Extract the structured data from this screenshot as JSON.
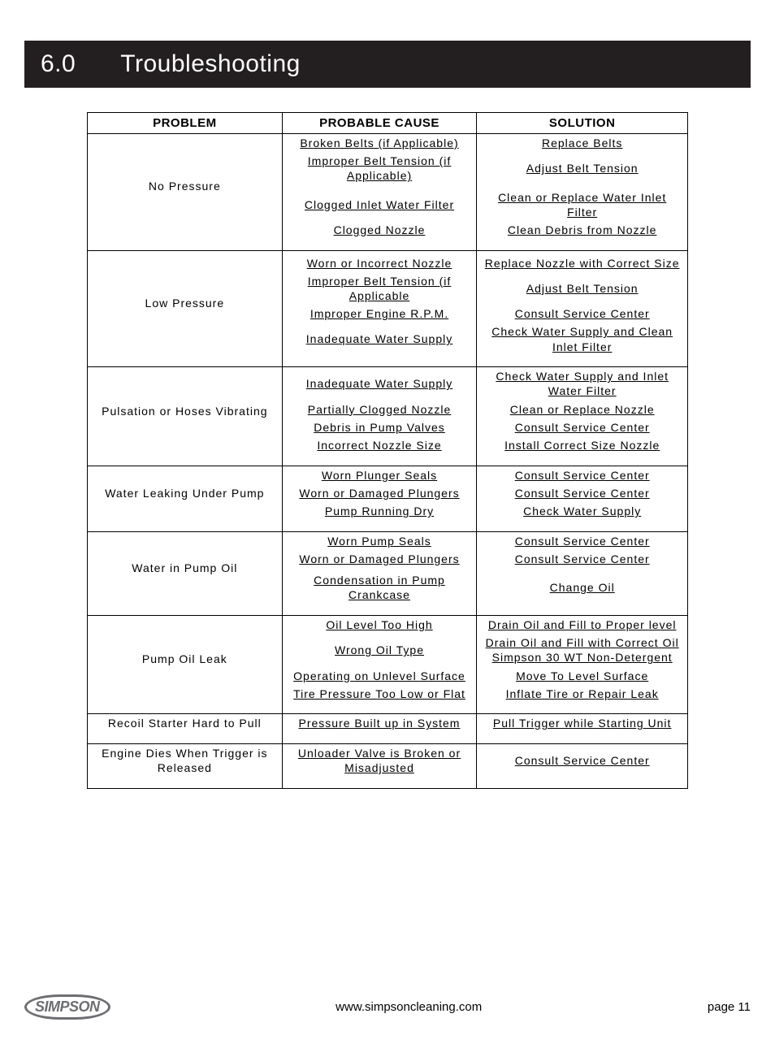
{
  "heading": {
    "number": "6.0",
    "title": "Troubleshooting"
  },
  "table": {
    "headers": {
      "problem": "PROBLEM",
      "cause": "PROBABLE CAUSE",
      "solution": "SOLUTION"
    },
    "groups": [
      {
        "problem": "No Pressure",
        "rows": [
          {
            "cause": "Broken Belts (if Applicable)",
            "solution": "Replace Belts"
          },
          {
            "cause": "Improper Belt Tension (if Applicable)",
            "solution": "Adjust Belt Tension"
          },
          {
            "cause": "",
            "solution": ""
          },
          {
            "cause": "Clogged Inlet Water Filter",
            "solution": "Clean or Replace Water Inlet Filter"
          },
          {
            "cause": "Clogged Nozzle",
            "solution": "Clean Debris from Nozzle"
          }
        ]
      },
      {
        "problem": "Low Pressure",
        "rows": [
          {
            "cause": "",
            "solution": ""
          },
          {
            "cause": "Worn or Incorrect Nozzle",
            "solution": "Replace Nozzle with Correct Size"
          },
          {
            "cause": "Improper Belt Tension (if Applicable",
            "solution": "Adjust Belt Tension"
          },
          {
            "cause": "Improper Engine R.P.M.",
            "solution": "Consult Service Center"
          },
          {
            "cause": "Inadequate Water Supply",
            "solution": "Check Water Supply and Clean Inlet Filter"
          }
        ]
      },
      {
        "problem": "Pulsation or Hoses Vibrating",
        "rows": [
          {
            "cause": "Inadequate Water Supply",
            "solution": "Check Water Supply and Inlet Water Filter"
          },
          {
            "cause": "Partially Clogged Nozzle",
            "solution": "Clean or Replace Nozzle"
          },
          {
            "cause": "Debris in Pump Valves",
            "solution": "Consult Service Center"
          },
          {
            "cause": "Incorrect Nozzle Size",
            "solution": "Install Correct Size Nozzle"
          }
        ]
      },
      {
        "problem": "Water Leaking Under Pump",
        "rows": [
          {
            "cause": "Worn Plunger Seals",
            "solution": "Consult Service Center"
          },
          {
            "cause": "Worn or Damaged Plungers",
            "solution": "Consult Service Center"
          },
          {
            "cause": "Pump Running Dry",
            "solution": "Check Water Supply"
          }
        ]
      },
      {
        "problem": "Water in Pump Oil",
        "rows": [
          {
            "cause": "Worn Pump Seals",
            "solution": "Consult Service Center"
          },
          {
            "cause": "Worn or Damaged Plungers",
            "solution": "Consult Service Center"
          },
          {
            "cause": "",
            "solution": ""
          },
          {
            "cause": "Condensation in Pump Crankcase",
            "solution": "Change Oil"
          }
        ]
      },
      {
        "problem": "Pump Oil Leak",
        "rows": [
          {
            "cause": "Oil Level Too High",
            "solution": "Drain Oil and Fill to Proper level"
          },
          {
            "cause": "Wrong Oil Type",
            "solution": "Drain Oil and Fill with Correct Oil Simpson 30 WT Non-Detergent"
          },
          {
            "cause": "Operating on Unlevel Surface",
            "solution": "Move To Level Surface"
          },
          {
            "cause": "Tire Pressure Too Low or Flat",
            "solution": "Inflate Tire or Repair Leak"
          }
        ]
      },
      {
        "problem": "Recoil Starter Hard to Pull",
        "rows": [
          {
            "cause": "Pressure Built up in System",
            "solution": "Pull Trigger while Starting Unit"
          }
        ]
      },
      {
        "problem": "Engine Dies When Trigger is Released",
        "rows": [
          {
            "cause": "Unloader Valve is Broken or Misadjusted",
            "solution": "Consult Service Center"
          }
        ]
      }
    ]
  },
  "footer": {
    "logo_text": "SIMPSON",
    "url": "www.simpsoncleaning.com",
    "page_label": "page 11"
  },
  "colors": {
    "heading_bg": "#231f20",
    "heading_fg": "#ffffff",
    "border": "#000000",
    "logo": "#6d6e71",
    "page_bg": "#ffffff",
    "text": "#000000"
  }
}
